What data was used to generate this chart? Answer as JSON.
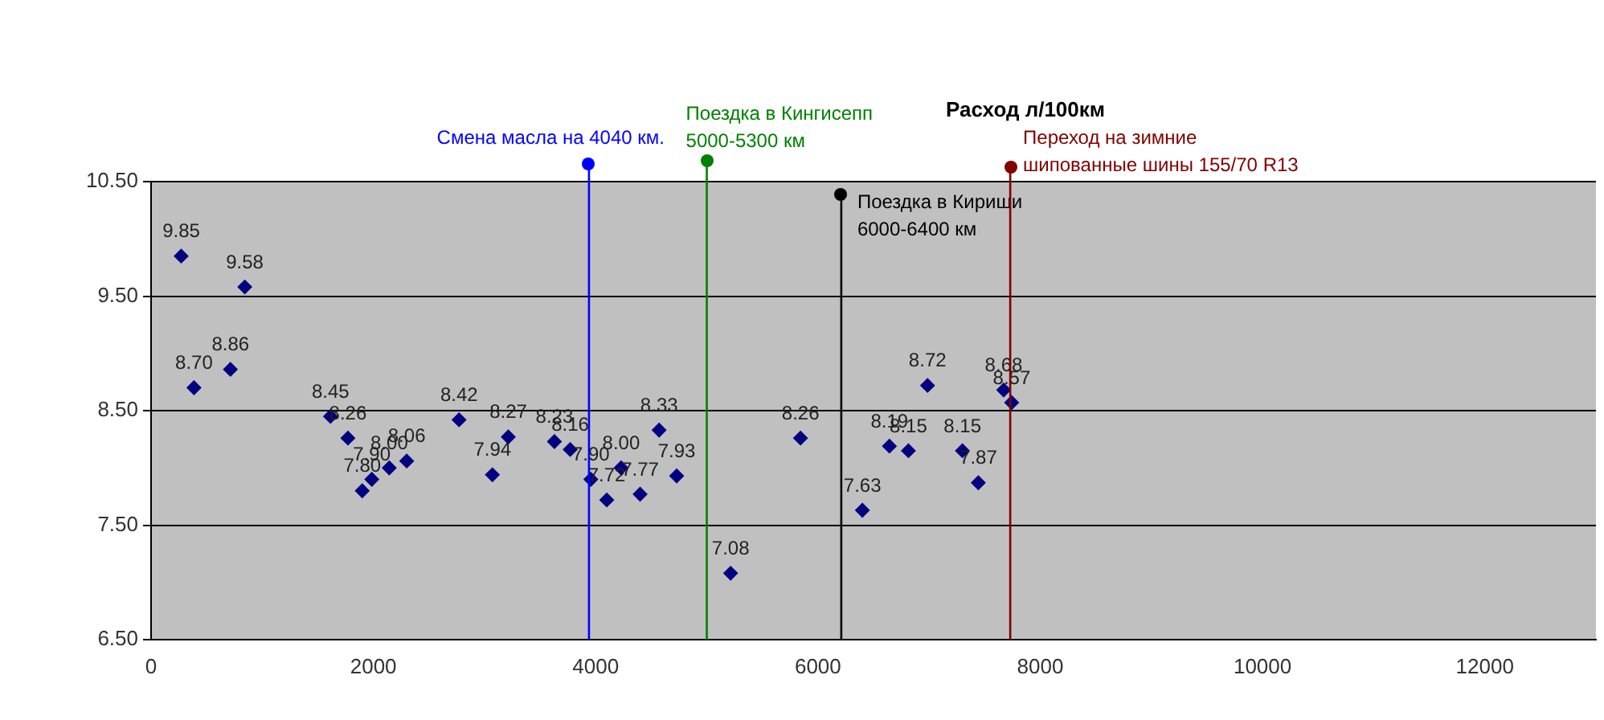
{
  "chart_data": {
    "type": "scatter",
    "title": "Расход л/100км",
    "x": [
      271,
      386,
      714,
      843,
      1614,
      1771,
      1900,
      1986,
      2143,
      2300,
      2771,
      3071,
      3214,
      3629,
      3771,
      3957,
      4100,
      4229,
      4400,
      4571,
      4729,
      5214,
      5843,
      6400,
      6643,
      6814,
      6986,
      7300,
      7443,
      7671,
      7743
    ],
    "series": [
      {
        "color": "#000080",
        "values": [
          9.85,
          8.7,
          8.86,
          9.58,
          8.45,
          8.26,
          7.8,
          7.9,
          8.0,
          8.06,
          8.42,
          7.94,
          8.27,
          8.23,
          8.16,
          7.9,
          7.72,
          8.0,
          7.77,
          8.33,
          7.93,
          7.08,
          8.26,
          7.63,
          8.19,
          8.15,
          8.72,
          8.15,
          7.87,
          8.68,
          8.57
        ],
        "value_labels": [
          "9.85",
          "8.70",
          "8.86",
          "9.58",
          "8.45",
          "8.26",
          "7.80",
          "7.90",
          "8.00",
          "8.06",
          "8.42",
          "7.94",
          "8.27",
          "8.23",
          "8.16",
          "7.90",
          "7.72",
          "8.00",
          "7.77",
          "8.33",
          "7.93",
          "7.08",
          "8.26",
          "7.63",
          "8.19",
          "8.15",
          "8.72",
          "8.15",
          "7.87",
          "8.68",
          "8.57"
        ]
      }
    ],
    "marker": "diamond",
    "grid": "y",
    "legend": false,
    "xlim": [
      0,
      13000
    ],
    "xticks": [
      0,
      2000,
      4000,
      6000,
      8000,
      10000,
      12000
    ],
    "ylim": [
      6.5,
      10.5
    ],
    "yticks": [
      {
        "value": 6.5,
        "label": "6.50"
      },
      {
        "value": 7.5,
        "label": "7.50"
      },
      {
        "value": 8.5,
        "label": "8.50"
      },
      {
        "value": 9.5,
        "label": "9.50"
      },
      {
        "value": 10.5,
        "label": "10.50"
      }
    ],
    "ref_lines": [
      {
        "axis": "x",
        "value": 3940,
        "label": "Смена масла на 4040 км.",
        "color": "#0000ff"
      },
      {
        "axis": "x",
        "value": 5000,
        "label": "Поездка в Кингисепп\n5000-5300 км",
        "color": "#008000"
      },
      {
        "axis": "x",
        "value": 6210,
        "label": "Поездка в Кириши\n6000-6400 км",
        "color": "#000000"
      },
      {
        "axis": "x",
        "value": 7730,
        "label": "Переход на зимние\nшипованные шины 155/70 R13",
        "color": "#800000"
      }
    ]
  }
}
